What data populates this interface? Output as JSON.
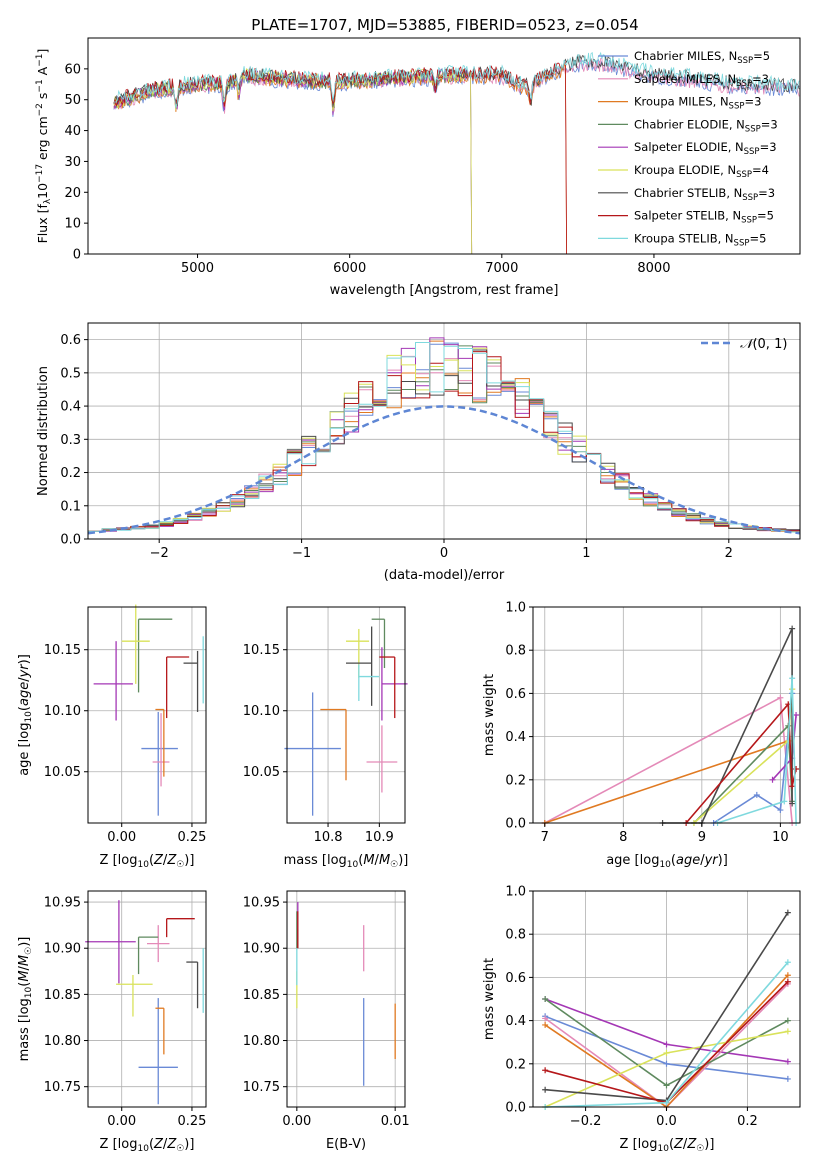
{
  "figure": {
    "title": "PLATE=1707, MJD=53885, FIBERID=0523, z=0.054"
  },
  "colors": {
    "cm": "#6a8ad6",
    "sm": "#e48ab8",
    "km": "#e07a22",
    "ce": "#5f8a5f",
    "se": "#a437b5",
    "ke": "#d9e25a",
    "cs": "#4a4a4a",
    "ss": "#b5171a",
    "ks": "#7fd9de",
    "grid": "#b0b0b0",
    "normal": "#5e86d4"
  },
  "chart_data": [
    {
      "id": "spectrum",
      "type": "line",
      "xlabel": "wavelength [Angstrom, rest frame]",
      "ylabel": "Flux [f_λ 10^-17 erg cm^-2 s^-1 A^-1]",
      "xlim": [
        4280,
        8960
      ],
      "ylim": [
        0,
        70
      ],
      "xticks": [
        5000,
        6000,
        7000,
        8000
      ],
      "yticks": [
        0,
        10,
        20,
        30,
        40,
        50,
        60
      ],
      "grid": false,
      "legend_position": "top-right",
      "wavelength_range": [
        4450,
        8960
      ],
      "series": [
        {
          "key": "cm",
          "name": "Chabrier MILES, N_SSP=5",
          "label_main": "Chabrier MILES, N",
          "label_sub": "SSP",
          "label_end": "=5",
          "cutoff": null
        },
        {
          "key": "sm",
          "name": "Salpeter MILES, N_SSP=3",
          "label_main": "Salpeter MILES, N",
          "label_sub": "SSP",
          "label_end": "=3",
          "cutoff": null
        },
        {
          "key": "km",
          "name": "Kroupa MILES, N_SSP=3",
          "label_main": "Kroupa MILES, N",
          "label_sub": "SSP",
          "label_end": "=3",
          "cutoff": 7420
        },
        {
          "key": "ce",
          "name": "Chabrier ELODIE, N_SSP=3",
          "label_main": "Chabrier ELODIE, N",
          "label_sub": "SSP",
          "label_end": "=3",
          "cutoff": 6800
        },
        {
          "key": "se",
          "name": "Salpeter ELODIE, N_SSP=3",
          "label_main": "Salpeter ELODIE, N",
          "label_sub": "SSP",
          "label_end": "=3",
          "cutoff": 6800
        },
        {
          "key": "ke",
          "name": "Kroupa ELODIE, N_SSP=4",
          "label_main": "Kroupa ELODIE, N",
          "label_sub": "SSP",
          "label_end": "=4",
          "cutoff": 6800
        },
        {
          "key": "cs",
          "name": "Chabrier STELIB, N_SSP=3",
          "label_main": "Chabrier STELIB, N",
          "label_sub": "SSP",
          "label_end": "=3",
          "cutoff": null
        },
        {
          "key": "ss",
          "name": "Salpeter STELIB, N_SSP=5",
          "label_main": "Salpeter STELIB, N",
          "label_sub": "SSP",
          "label_end": "=5",
          "cutoff": 7420
        },
        {
          "key": "ks",
          "name": "Kroupa STELIB, N_SSP=5",
          "label_main": "Kroupa STELIB, N",
          "label_sub": "SSP",
          "label_end": "=5",
          "cutoff": null
        }
      ],
      "continuum": [
        [
          4450,
          49
        ],
        [
          4700,
          53
        ],
        [
          5000,
          55
        ],
        [
          5200,
          55
        ],
        [
          5300,
          58
        ],
        [
          5500,
          57
        ],
        [
          5800,
          56
        ],
        [
          6000,
          56
        ],
        [
          6300,
          57
        ],
        [
          6700,
          58
        ],
        [
          7000,
          58
        ],
        [
          7150,
          54
        ],
        [
          7300,
          58
        ],
        [
          7500,
          62
        ],
        [
          7700,
          62
        ],
        [
          7900,
          59
        ],
        [
          8200,
          57
        ],
        [
          8500,
          55
        ],
        [
          8960,
          54
        ]
      ]
    },
    {
      "id": "residuals",
      "type": "histogram",
      "xlabel": "(data-model)/error",
      "ylabel": "Normed distribution",
      "xlim": [
        -2.5,
        2.5
      ],
      "ylim": [
        0,
        0.65
      ],
      "xticks": [
        -2,
        -1,
        0,
        1,
        2
      ],
      "yticks": [
        0.0,
        0.1,
        0.2,
        0.3,
        0.4,
        0.5,
        0.6
      ],
      "grid": true,
      "legend": "N(0,1)",
      "bin_width": 0.1,
      "normal": {
        "mean": 0,
        "sigma": 1
      }
    },
    {
      "id": "age_vs_Z",
      "type": "errorbar",
      "xlabel": "Z [log10(Z/Z☉)]",
      "ylabel": "age [log10(age/yr)]",
      "xlim": [
        -0.12,
        0.3
      ],
      "ylim": [
        10.008,
        10.185
      ],
      "xticks": [
        0.0,
        0.25
      ],
      "yticks": [
        10.05,
        10.1,
        10.15
      ],
      "grid": true,
      "points": [
        {
          "key": "cm",
          "x": 0.13,
          "y": 10.069,
          "xerr": [
            0.06,
            0.07
          ],
          "yerr": [
            0.055,
            0.03
          ]
        },
        {
          "key": "sm",
          "x": 0.14,
          "y": 10.058,
          "xerr": [
            0.03,
            0.03
          ],
          "yerr": [
            0.02,
            0.04
          ]
        },
        {
          "key": "km",
          "x": 0.15,
          "y": 10.101,
          "xerr": [
            0.03,
            0.0
          ],
          "yerr": [
            0.055,
            0.0
          ]
        },
        {
          "key": "ce",
          "x": 0.06,
          "y": 10.175,
          "xerr": [
            0.0,
            0.12
          ],
          "yerr": [
            0.06,
            0.0
          ]
        },
        {
          "key": "se",
          "x": -0.02,
          "y": 10.122,
          "xerr": [
            0.08,
            0.06
          ],
          "yerr": [
            0.03,
            0.035
          ]
        },
        {
          "key": "ke",
          "x": 0.05,
          "y": 10.157,
          "xerr": [
            0.05,
            0.05
          ],
          "yerr": [
            0.035,
            0.03
          ]
        },
        {
          "key": "cs",
          "x": 0.27,
          "y": 10.139,
          "xerr": [
            0.05,
            0.0
          ],
          "yerr": [
            0.04,
            0.01
          ]
        },
        {
          "key": "ss",
          "x": 0.16,
          "y": 10.144,
          "xerr": [
            0.0,
            0.08
          ],
          "yerr": [
            0.05,
            0.0
          ]
        },
        {
          "key": "ks",
          "x": 0.29,
          "y": 10.128,
          "xerr": [
            0.0,
            0.0
          ],
          "yerr": [
            0.022,
            0.033
          ]
        }
      ]
    },
    {
      "id": "age_vs_mass",
      "type": "errorbar",
      "xlabel": "mass [log10(M/M☉)]",
      "ylabel": "",
      "xlim": [
        10.72,
        10.95
      ],
      "ylim": [
        10.008,
        10.185
      ],
      "xticks": [
        10.8,
        10.9
      ],
      "yticks": [
        10.05,
        10.1,
        10.15
      ],
      "grid": true,
      "points": [
        {
          "key": "cm",
          "x": 10.77,
          "y": 10.069,
          "xerr": [
            0.055,
            0.055
          ],
          "yerr": [
            0.055,
            0.046
          ]
        },
        {
          "key": "sm",
          "x": 10.905,
          "y": 10.058,
          "xerr": [
            0.03,
            0.03
          ],
          "yerr": [
            0.025,
            0.03
          ]
        },
        {
          "key": "km",
          "x": 10.835,
          "y": 10.101,
          "xerr": [
            0.05,
            0.0
          ],
          "yerr": [
            0.058,
            0.0
          ]
        },
        {
          "key": "ce",
          "x": 10.91,
          "y": 10.175,
          "xerr": [
            0.025,
            0.0
          ],
          "yerr": [
            0.04,
            0.0
          ]
        },
        {
          "key": "se",
          "x": 10.905,
          "y": 10.122,
          "xerr": [
            0.0,
            0.05
          ],
          "yerr": [
            0.03,
            0.03
          ]
        },
        {
          "key": "ke",
          "x": 10.86,
          "y": 10.157,
          "xerr": [
            0.025,
            0.02
          ],
          "yerr": [
            0.03,
            0.01
          ]
        },
        {
          "key": "cs",
          "x": 10.885,
          "y": 10.139,
          "xerr": [
            0.05,
            0.0
          ],
          "yerr": [
            0.035,
            0.03
          ]
        },
        {
          "key": "ss",
          "x": 10.93,
          "y": 10.144,
          "xerr": [
            0.03,
            0.0
          ],
          "yerr": [
            0.05,
            0.0
          ]
        },
        {
          "key": "ks",
          "x": 10.86,
          "y": 10.128,
          "xerr": [
            0.0,
            0.04
          ],
          "yerr": [
            0.02,
            0.01
          ]
        }
      ]
    },
    {
      "id": "mass_weight_vs_age",
      "type": "line",
      "xlabel": "age [log10(age/yr)]",
      "ylabel": "mass weight",
      "xlim": [
        6.85,
        10.25
      ],
      "ylim": [
        0,
        1.0
      ],
      "xticks": [
        7,
        8,
        9,
        10
      ],
      "yticks": [
        0.0,
        0.2,
        0.4,
        0.6,
        0.8,
        1.0
      ],
      "grid": true,
      "series": [
        {
          "key": "sm",
          "x": [
            7.0,
            10.0,
            10.15
          ],
          "y": [
            0.0,
            0.58,
            0.0
          ]
        },
        {
          "key": "km",
          "x": [
            7.0,
            10.1,
            10.15
          ],
          "y": [
            0.0,
            0.38,
            0.62
          ]
        },
        {
          "key": "cm",
          "x": [
            9.15,
            9.7,
            10.0,
            10.15
          ],
          "y": [
            0.0,
            0.13,
            0.06,
            0.6
          ]
        },
        {
          "key": "ce",
          "x": [
            8.9,
            10.1,
            10.15
          ],
          "y": [
            0.0,
            0.45,
            0.1
          ]
        },
        {
          "key": "se",
          "x": [
            9.9,
            10.15,
            10.2
          ],
          "y": [
            0.2,
            0.3,
            0.5
          ]
        },
        {
          "key": "ke",
          "x": [
            8.9,
            10.1,
            10.15
          ],
          "y": [
            0.0,
            0.38,
            0.62
          ]
        },
        {
          "key": "cs",
          "x": [
            8.5,
            9.0,
            10.15,
            10.15
          ],
          "y": [
            0.0,
            0.0,
            0.9,
            0.09
          ]
        },
        {
          "key": "ss",
          "x": [
            8.8,
            10.1,
            10.15,
            10.2
          ],
          "y": [
            0.0,
            0.55,
            0.17,
            0.25
          ]
        },
        {
          "key": "ks",
          "x": [
            9.2,
            10.05,
            10.15,
            10.2
          ],
          "y": [
            0.0,
            0.1,
            0.67,
            0.0
          ]
        }
      ]
    },
    {
      "id": "mass_vs_Z",
      "type": "errorbar",
      "xlabel": "Z [log10(Z/Z☉)]",
      "ylabel": "mass [log10(M/M☉)]",
      "xlim": [
        -0.12,
        0.3
      ],
      "ylim": [
        10.728,
        10.962
      ],
      "xticks": [
        0.0,
        0.25
      ],
      "yticks": [
        10.75,
        10.8,
        10.85,
        10.9,
        10.95
      ],
      "grid": true,
      "points": [
        {
          "key": "cm",
          "x": 0.13,
          "y": 10.771,
          "xerr": [
            0.07,
            0.07
          ],
          "yerr": [
            0.04,
            0.075
          ]
        },
        {
          "key": "sm",
          "x": 0.13,
          "y": 10.905,
          "xerr": [
            0.04,
            0.04
          ],
          "yerr": [
            0.02,
            0.02
          ]
        },
        {
          "key": "km",
          "x": 0.15,
          "y": 10.835,
          "xerr": [
            0.03,
            0.0
          ],
          "yerr": [
            0.05,
            0.0
          ]
        },
        {
          "key": "ce",
          "x": 0.06,
          "y": 10.912,
          "xerr": [
            0.0,
            0.07
          ],
          "yerr": [
            0.04,
            0.0
          ]
        },
        {
          "key": "se",
          "x": -0.01,
          "y": 10.907,
          "xerr": [
            0.12,
            0.06
          ],
          "yerr": [
            0.045,
            0.045
          ]
        },
        {
          "key": "ke",
          "x": 0.04,
          "y": 10.861,
          "xerr": [
            0.06,
            0.07
          ],
          "yerr": [
            0.035,
            0.01
          ]
        },
        {
          "key": "cs",
          "x": 0.27,
          "y": 10.885,
          "xerr": [
            0.04,
            0.0
          ],
          "yerr": [
            0.05,
            0.0
          ]
        },
        {
          "key": "ss",
          "x": 0.16,
          "y": 10.932,
          "xerr": [
            0.0,
            0.1
          ],
          "yerr": [
            0.02,
            0.0
          ]
        },
        {
          "key": "ks",
          "x": 0.29,
          "y": 10.85,
          "xerr": [
            0.0,
            0.0
          ],
          "yerr": [
            0.02,
            0.05
          ]
        }
      ]
    },
    {
      "id": "mass_vs_ebv",
      "type": "errorbar",
      "xlabel": "E(B-V)",
      "ylabel": "",
      "xlim": [
        -0.001,
        0.011
      ],
      "ylim": [
        10.728,
        10.962
      ],
      "xticks": [
        0.0,
        0.01
      ],
      "xtick_labels": [
        "0.00",
        "0.01"
      ],
      "yticks": [
        10.75,
        10.8,
        10.85,
        10.9,
        10.95
      ],
      "grid": true,
      "points": [
        {
          "key": "cm",
          "x": 0.0068,
          "y": 10.771,
          "xerr": [
            0,
            0
          ],
          "yerr": [
            0.02,
            0.075
          ]
        },
        {
          "key": "sm",
          "x": 0.0068,
          "y": 10.9,
          "xerr": [
            0,
            0
          ],
          "yerr": [
            0.025,
            0.025
          ]
        },
        {
          "key": "km",
          "x": 0.01,
          "y": 10.81,
          "xerr": [
            0,
            0
          ],
          "yerr": [
            0.03,
            0.03
          ]
        },
        {
          "key": "ce",
          "x": 0.0,
          "y": 10.92,
          "xerr": [
            0,
            0
          ],
          "yerr": [
            0.02,
            0.02
          ]
        },
        {
          "key": "se",
          "x": 0.0001,
          "y": 10.93,
          "xerr": [
            0,
            0
          ],
          "yerr": [
            0.02,
            0.02
          ]
        },
        {
          "key": "ke",
          "x": 0.0,
          "y": 10.855,
          "xerr": [
            0,
            0
          ],
          "yerr": [
            0.02,
            0.02
          ]
        },
        {
          "key": "cs",
          "x": 0.0001,
          "y": 10.91,
          "xerr": [
            0,
            0
          ],
          "yerr": [
            0.01,
            0.01
          ]
        },
        {
          "key": "ss",
          "x": 0.0001,
          "y": 10.92,
          "xerr": [
            0,
            0
          ],
          "yerr": [
            0.02,
            0.02
          ]
        },
        {
          "key": "ks",
          "x": 0.0,
          "y": 10.88,
          "xerr": [
            0,
            0
          ],
          "yerr": [
            0.02,
            0.02
          ]
        }
      ]
    },
    {
      "id": "mass_weight_vs_Z",
      "type": "line",
      "xlabel": "Z [log10(Z/Z☉)]",
      "ylabel": "mass weight",
      "xlim": [
        -0.33,
        0.33
      ],
      "ylim": [
        0,
        1.0
      ],
      "xticks": [
        -0.2,
        0.0,
        0.2
      ],
      "yticks": [
        0.0,
        0.2,
        0.4,
        0.6,
        0.8,
        1.0
      ],
      "grid": true,
      "series": [
        {
          "key": "se",
          "x": [
            -0.3,
            0.0,
            0.3
          ],
          "y": [
            0.5,
            0.29,
            0.21
          ]
        },
        {
          "key": "cm",
          "x": [
            -0.3,
            0.0,
            0.3
          ],
          "y": [
            0.42,
            0.2,
            0.13
          ]
        },
        {
          "key": "sm",
          "x": [
            -0.3,
            0.0,
            0.3
          ],
          "y": [
            0.41,
            0.0,
            0.57
          ]
        },
        {
          "key": "km",
          "x": [
            -0.3,
            0.0,
            0.3
          ],
          "y": [
            0.38,
            0.0,
            0.61
          ]
        },
        {
          "key": "ce",
          "x": [
            -0.3,
            0.0,
            0.3
          ],
          "y": [
            0.5,
            0.1,
            0.4
          ]
        },
        {
          "key": "ke",
          "x": [
            -0.3,
            0.0,
            0.3
          ],
          "y": [
            0.0,
            0.25,
            0.35
          ]
        },
        {
          "key": "cs",
          "x": [
            -0.3,
            0.0,
            0.3
          ],
          "y": [
            0.08,
            0.03,
            0.9
          ]
        },
        {
          "key": "ss",
          "x": [
            -0.3,
            0.0,
            0.3
          ],
          "y": [
            0.17,
            0.02,
            0.58
          ]
        },
        {
          "key": "ks",
          "x": [
            -0.3,
            0.0,
            0.3
          ],
          "y": [
            0.0,
            0.02,
            0.67
          ]
        }
      ]
    }
  ]
}
